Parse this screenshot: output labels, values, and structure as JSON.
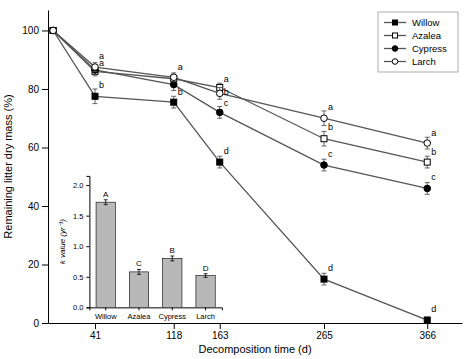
{
  "chart_data": [
    {
      "type": "line",
      "xlabel": "Decomposition time (d)",
      "ylabel": "Remaining litter dry mass (%)",
      "x": [
        0,
        41,
        118,
        163,
        265,
        366
      ],
      "xlim": [
        -5,
        400
      ],
      "ylim": [
        0,
        107
      ],
      "xticks": [
        41,
        118,
        163,
        265,
        366
      ],
      "yticks": [
        0,
        20,
        40,
        60,
        80,
        100
      ],
      "grid": false,
      "legend": "upper right",
      "color": "#555555",
      "series": [
        {
          "name": "Willow",
          "marker": "square",
          "values": [
            100,
            77.5,
            75.5,
            55.0,
            15.0,
            1.0
          ],
          "errors": [
            0,
            2.5,
            2.0,
            2.0,
            2.0,
            1.0
          ]
        },
        {
          "name": "Azalea",
          "marker": "open-square",
          "values": [
            100,
            86.0,
            83.5,
            80.5,
            63.0,
            55.0
          ],
          "errors": [
            0,
            1.5,
            1.5,
            1.5,
            2.5,
            2.0
          ]
        },
        {
          "name": "Cypress",
          "marker": "circle",
          "values": [
            100,
            86.5,
            81.5,
            72.0,
            54.0,
            46.0
          ],
          "errors": [
            0,
            1.5,
            2.0,
            2.0,
            2.0,
            2.0
          ]
        },
        {
          "name": "Larch",
          "marker": "open-circle",
          "values": [
            100,
            87.5,
            84.0,
            78.5,
            70.0,
            61.5
          ],
          "errors": [
            0,
            1.5,
            1.5,
            2.0,
            2.5,
            2.0
          ]
        }
      ],
      "annotations": [
        {
          "x": 41,
          "y": 90.0,
          "text": "a"
        },
        {
          "x": 41,
          "y": 87.5,
          "text": "a"
        },
        {
          "x": 41,
          "y": 80.0,
          "text": "b"
        },
        {
          "x": 118,
          "y": 86.0,
          "text": "a"
        },
        {
          "x": 118,
          "y": 77.5,
          "text": "b"
        },
        {
          "x": 163,
          "y": 82.0,
          "text": "a"
        },
        {
          "x": 163,
          "y": 77.5,
          "text": "b"
        },
        {
          "x": 163,
          "y": 74.0,
          "text": "c"
        },
        {
          "x": 163,
          "y": 57.5,
          "text": "d"
        },
        {
          "x": 265,
          "y": 72.5,
          "text": "a"
        },
        {
          "x": 265,
          "y": 65.5,
          "text": "b"
        },
        {
          "x": 265,
          "y": 56.5,
          "text": "c"
        },
        {
          "x": 265,
          "y": 17.5,
          "text": "d"
        },
        {
          "x": 366,
          "y": 63.5,
          "text": "a"
        },
        {
          "x": 366,
          "y": 57.0,
          "text": "b"
        },
        {
          "x": 366,
          "y": 48.5,
          "text": "c"
        },
        {
          "x": 366,
          "y": 3.5,
          "text": "d"
        }
      ]
    },
    {
      "type": "bar",
      "categories": [
        "Willow",
        "Azalea",
        "Cypress",
        "Larch"
      ],
      "values": [
        1.72,
        0.58,
        0.8,
        0.52
      ],
      "errors": [
        0.04,
        0.04,
        0.04,
        0.03
      ],
      "annotations": [
        "A",
        "C",
        "B",
        "D"
      ],
      "color": "#b8b8b8",
      "ylabel": "k value (yr⁻¹)",
      "ylim": [
        0,
        2.15
      ],
      "yticks": [
        {
          "value": 0.0,
          "label": "0.0"
        },
        0.5,
        {
          "value": 1.0,
          "label": "1.0"
        },
        1.5,
        {
          "value": 2.0,
          "label": "2.0"
        }
      ]
    }
  ]
}
